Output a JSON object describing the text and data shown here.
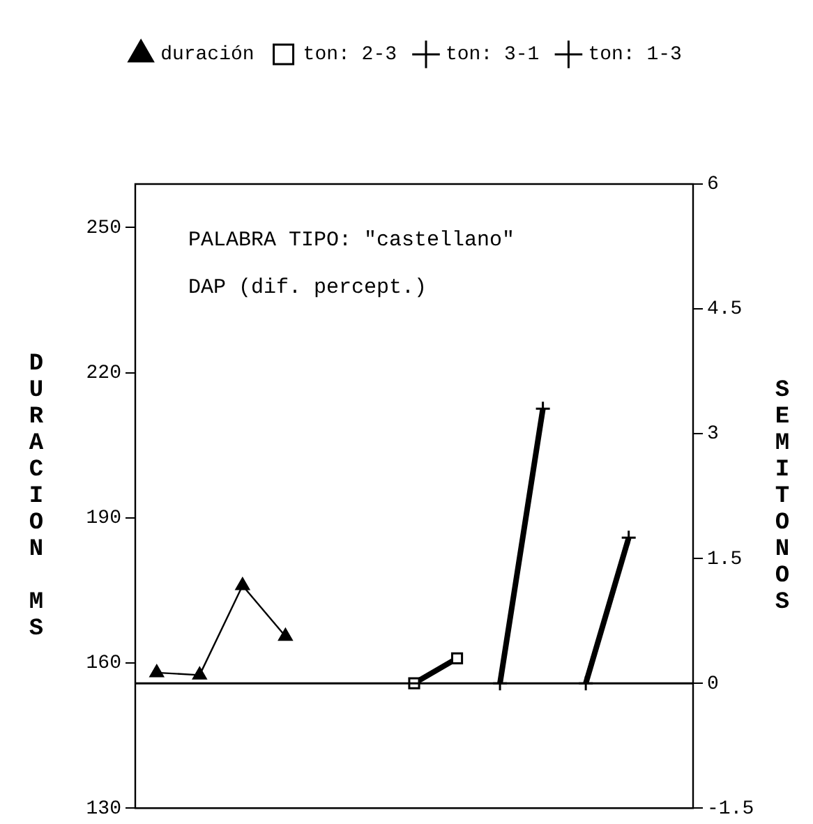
{
  "chart_data": {
    "type": "line",
    "categories": [
      null,
      null,
      null,
      null,
      null,
      null,
      null,
      null,
      null,
      null,
      null,
      null,
      null
    ],
    "series": [
      {
        "name": "duración",
        "color": "#000000",
        "marker": "triangle",
        "values": [
          158,
          157.5,
          176,
          165.5,
          null,
          null,
          null,
          null,
          null,
          null,
          null,
          null,
          null
        ]
      },
      {
        "name": "ton: 2-3",
        "color": "#000000",
        "marker": "square",
        "axis": "y2",
        "values": [
          null,
          null,
          null,
          null,
          null,
          null,
          0,
          0.3,
          null,
          null,
          null,
          null,
          null
        ]
      },
      {
        "name": "ton: 3-1",
        "color": "#000000",
        "marker": "cross",
        "axis": "y2",
        "values": [
          null,
          null,
          null,
          null,
          null,
          null,
          null,
          null,
          0,
          3.3,
          null,
          null,
          null
        ]
      },
      {
        "name": "ton: 1-3",
        "color": "#000000",
        "marker": "cross",
        "axis": "y2",
        "values": [
          null,
          null,
          null,
          null,
          null,
          null,
          null,
          null,
          null,
          null,
          0,
          1.75,
          null
        ]
      }
    ],
    "ylabel": "DURACION MS",
    "y2label": "SEMITONOS",
    "ylim": [
      130,
      259
    ],
    "yticks": [
      130,
      160,
      190,
      220,
      250
    ],
    "y2lim": [
      -1.5,
      6
    ],
    "y2ticks": [
      -1.5,
      0,
      1.5,
      3,
      4.5,
      6
    ],
    "ref_lines": [
      {
        "axis": "y2",
        "value": 0
      }
    ],
    "annotations": [
      "PALABRA TIPO: \"castellano\"",
      "DAP (dif. percept.)"
    ],
    "legend": "top",
    "grid": false,
    "line_style": "solid"
  }
}
